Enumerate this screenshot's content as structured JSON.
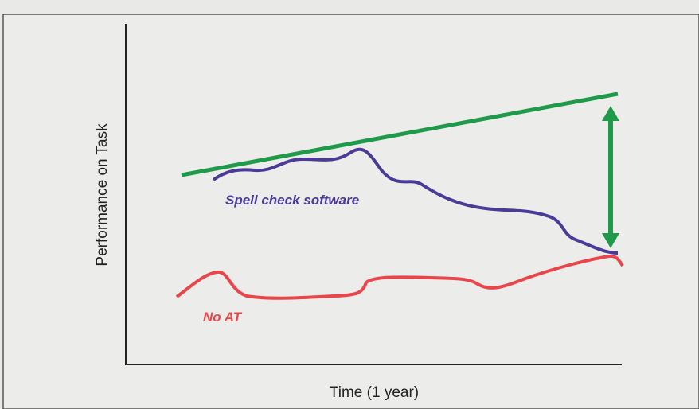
{
  "x_axis_label": "Time (1 year)",
  "y_axis_label": "Performance on Task",
  "annotations": [
    "Spell check software",
    "No AT"
  ]
}
